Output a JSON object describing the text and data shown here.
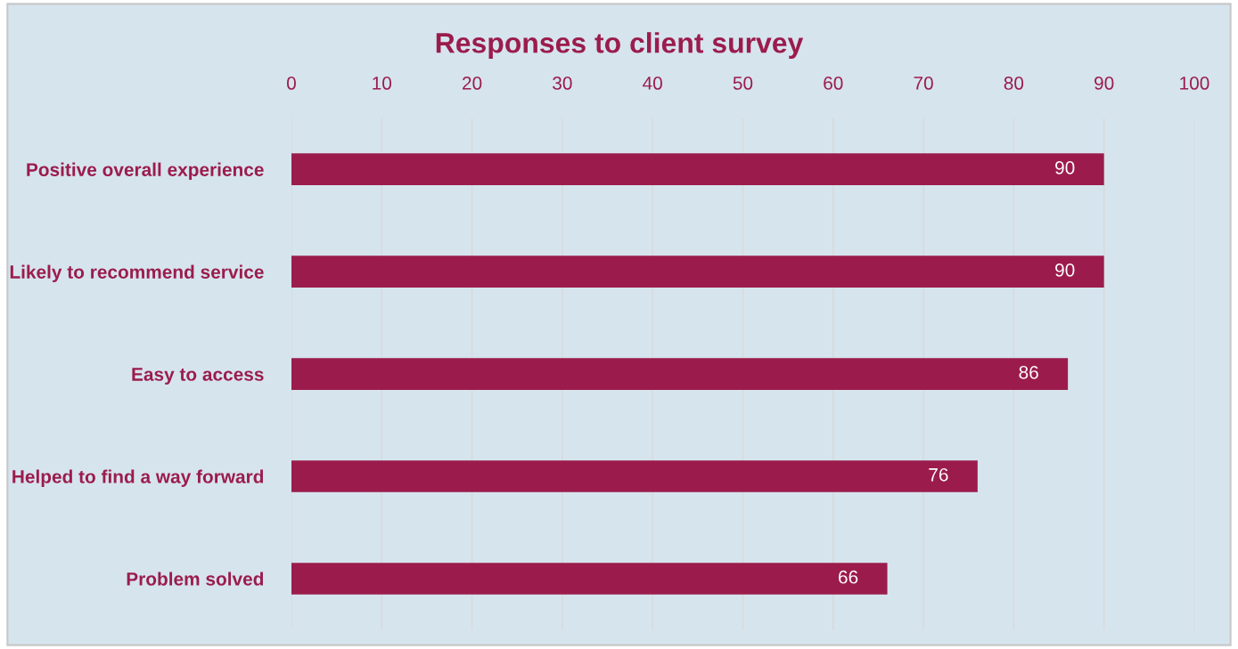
{
  "chart_data": {
    "type": "bar",
    "orientation": "horizontal",
    "title": "Responses to client survey",
    "categories": [
      "Positive overall experience",
      "Likely to recommend service",
      "Easy to access",
      "Helped to find a way forward",
      "Problem solved"
    ],
    "values": [
      90,
      90,
      86,
      76,
      66
    ],
    "color": "#9b1c4c",
    "xlim": [
      0,
      100
    ],
    "xticks": [
      0,
      10,
      20,
      30,
      40,
      50,
      60,
      70,
      80,
      90,
      100
    ],
    "grid": "x",
    "data_labels": true
  }
}
